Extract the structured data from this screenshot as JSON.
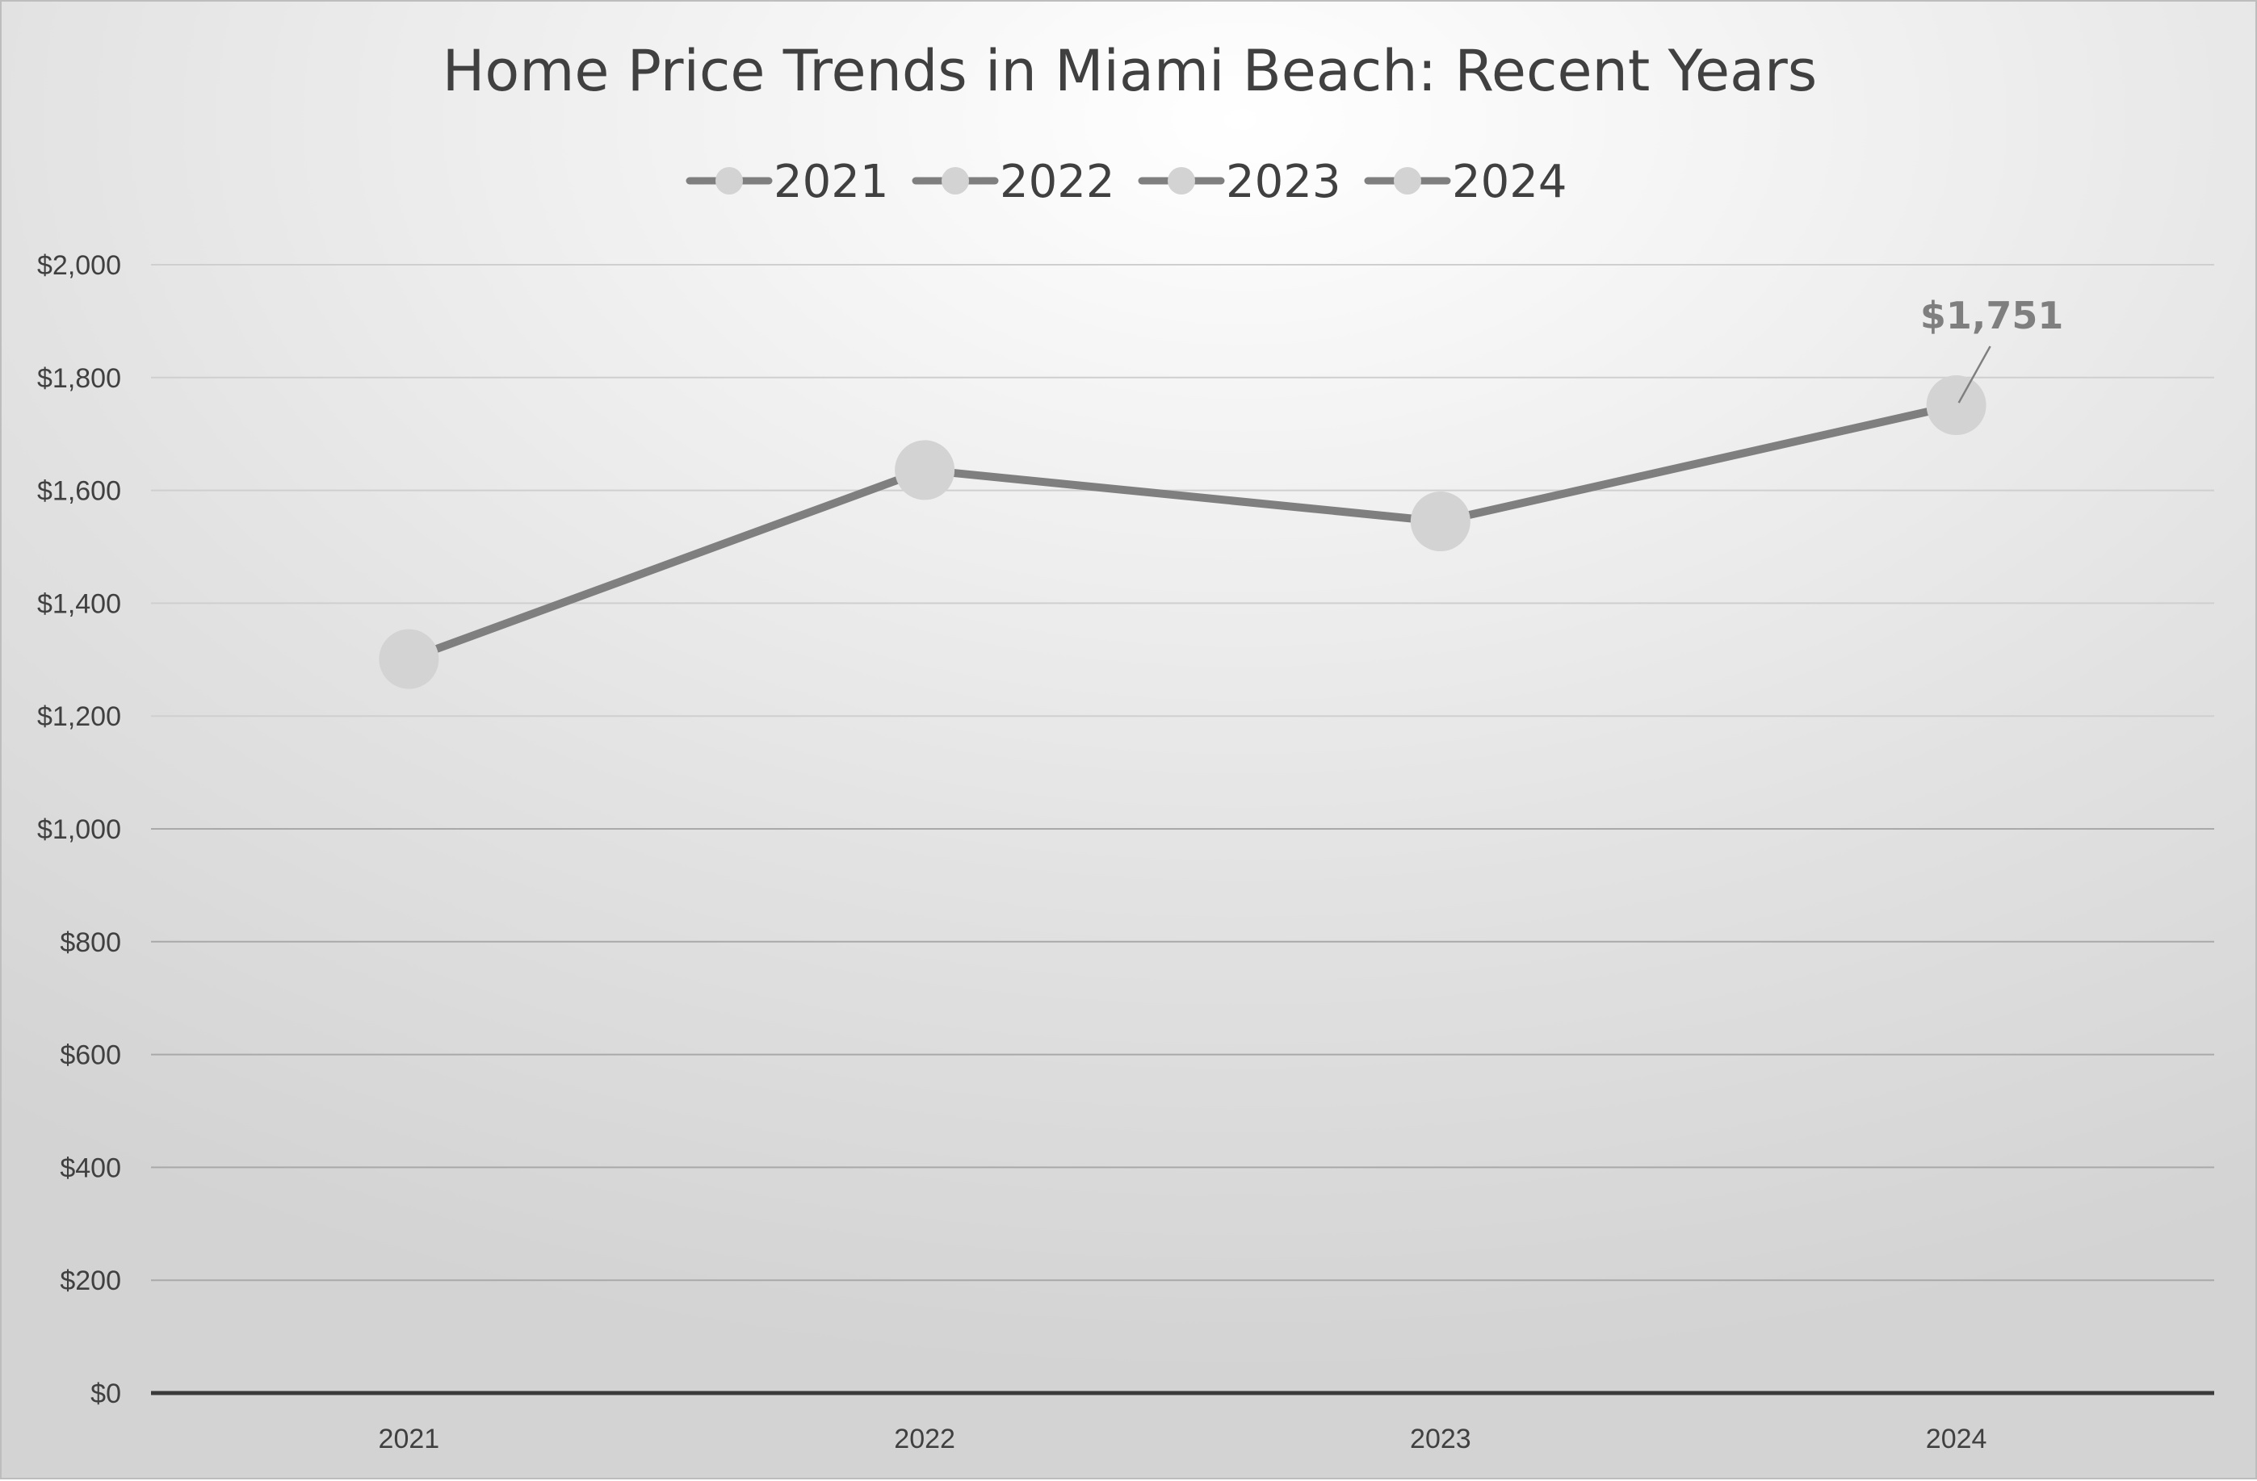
{
  "chart_data": {
    "type": "line",
    "title": "Home Price Trends in Miami Beach: Recent Years",
    "categories": [
      "2021",
      "2022",
      "2023",
      "2024"
    ],
    "series": [
      {
        "values": [
          1301,
          1636,
          1545,
          1751
        ]
      }
    ],
    "legend": {
      "placement": "top",
      "entries": [
        "2021",
        "2022",
        "2023",
        "2024"
      ]
    },
    "y_ticks": [
      "$0",
      "$200",
      "$400",
      "$600",
      "$800",
      "$1,000",
      "$1,200",
      "$1,400",
      "$1,600",
      "$1,800",
      "$2,000"
    ],
    "ylim": [
      0,
      2000
    ],
    "grid": true,
    "annotations": [
      {
        "category": "2024",
        "text": "$1,751"
      }
    ],
    "colors": {
      "line": "#7f7f7f",
      "marker": "#d3d3d3",
      "gridline": "#cfcfcf",
      "axis": "#3a3a3a",
      "text": "#404040"
    }
  }
}
